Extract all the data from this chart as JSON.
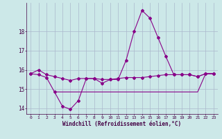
{
  "xlabel": "Windchill (Refroidissement éolien,°C)",
  "background_color": "#cce8e8",
  "grid_color": "#aab8cc",
  "line_color": "#880088",
  "x_values": [
    0,
    1,
    2,
    3,
    4,
    5,
    6,
    7,
    8,
    9,
    10,
    11,
    12,
    13,
    14,
    15,
    16,
    17,
    18,
    19,
    20,
    21,
    22,
    23
  ],
  "series1": [
    15.8,
    16.0,
    15.75,
    15.65,
    15.55,
    15.45,
    15.55,
    15.55,
    15.55,
    15.5,
    15.5,
    15.55,
    15.6,
    15.6,
    15.6,
    15.65,
    15.7,
    15.75,
    15.75,
    15.75,
    15.75,
    15.65,
    15.8,
    15.8
  ],
  "series2": [
    15.8,
    15.75,
    15.6,
    14.85,
    14.1,
    13.95,
    14.4,
    15.55,
    15.55,
    15.3,
    15.5,
    15.5,
    16.5,
    18.0,
    19.1,
    18.7,
    17.7,
    16.7,
    15.75,
    15.75,
    15.75,
    15.65,
    15.8,
    15.8
  ],
  "series3": [
    null,
    null,
    null,
    14.85,
    14.85,
    14.85,
    14.85,
    14.85,
    14.85,
    14.85,
    14.85,
    14.85,
    14.85,
    14.85,
    14.85,
    14.85,
    14.85,
    14.85,
    14.85,
    14.85,
    14.85,
    14.85,
    15.8,
    15.8
  ],
  "ylim": [
    13.7,
    19.5
  ],
  "yticks": [
    14,
    15,
    16,
    17,
    18
  ],
  "xlim": [
    -0.5,
    23.5
  ]
}
